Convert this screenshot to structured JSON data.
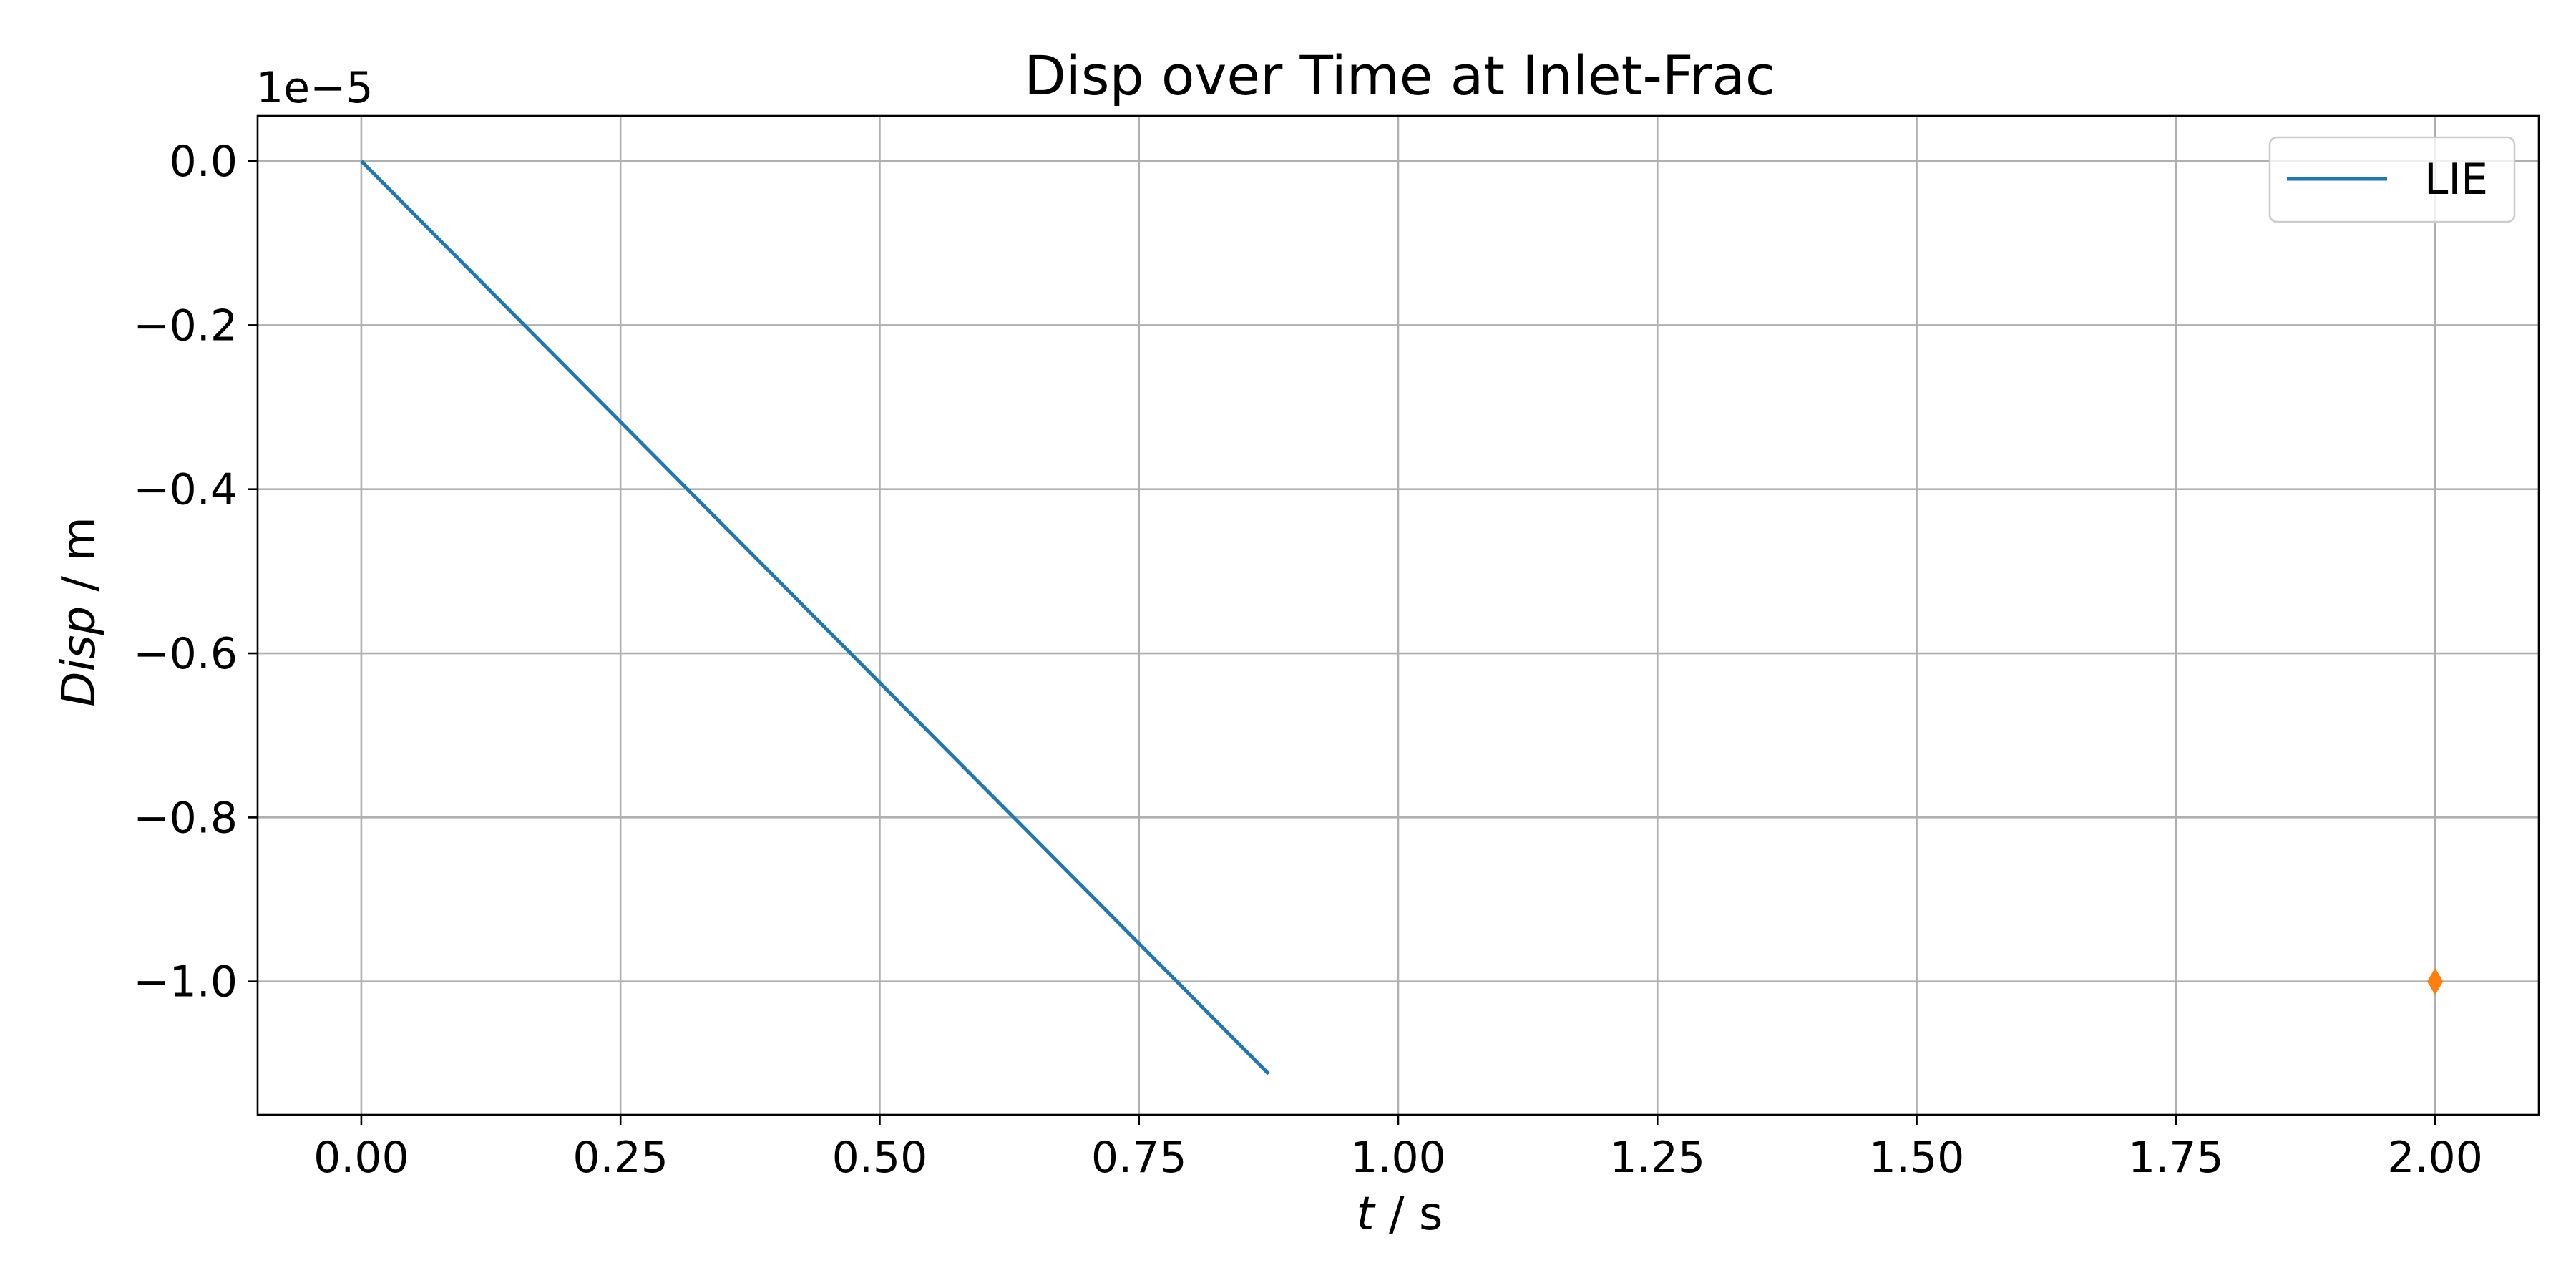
{
  "chart_data": {
    "type": "line",
    "title": "Disp over Time at Inlet-Frac",
    "xlabel_italic": "t",
    "xlabel_unit": " / s",
    "ylabel_italic": "Disp",
    "ylabel_unit": " / m",
    "y_offset_text": "1e−5",
    "xlim": [
      -0.1,
      2.1
    ],
    "ylim": [
      -1.1625,
      0.055
    ],
    "grid": true,
    "legend_placement": "top-right",
    "x_ticks": [
      0.0,
      0.25,
      0.5,
      0.75,
      1.0,
      1.25,
      1.5,
      1.75,
      2.0
    ],
    "x_tick_labels": [
      "0.00",
      "0.25",
      "0.50",
      "0.75",
      "1.00",
      "1.25",
      "1.50",
      "1.75",
      "2.00"
    ],
    "y_ticks": [
      0.0,
      -0.2,
      -0.4,
      -0.6,
      -0.8,
      -1.0
    ],
    "y_tick_labels": [
      "0.0",
      "−0.2",
      "−0.4",
      "−0.6",
      "−0.8",
      "−1.0"
    ],
    "series": [
      {
        "name": "LIE",
        "kind": "line",
        "color": "#1f77b4",
        "x": [
          0.0,
          0.875
        ],
        "y": [
          0.0,
          -1.1125
        ]
      },
      {
        "kind": "marker",
        "marker": "thin-diamond",
        "color": "#ff7f0e",
        "x": [
          2.0
        ],
        "y": [
          -1.0
        ]
      }
    ]
  }
}
